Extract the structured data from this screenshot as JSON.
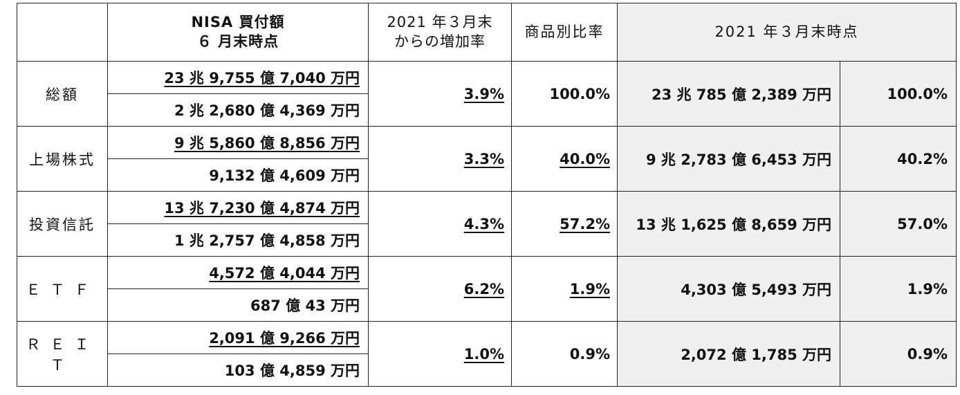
{
  "headers": {
    "nisa_line1": "NISA 買付額",
    "nisa_line2": "６ 月末時点",
    "increase_line1": "2021 年３月末",
    "increase_line2": "からの増加率",
    "share": "商品別比率",
    "march": "2021 年３月末時点"
  },
  "rows": [
    {
      "label": "総額",
      "amount_top": "23 兆 9,755 億 7,040 万円",
      "amount_bottom": "2 兆 2,680 億 4,369 万円",
      "increase": "3.9%",
      "share": "100.0%",
      "march_amount": "23 兆 785 億 2,389 万円",
      "march_share": "100.0%"
    },
    {
      "label": "上場株式",
      "amount_top": "9 兆 5,860 億 8,856 万円",
      "amount_bottom": "9,132 億 4,609 万円",
      "increase": "3.3%",
      "share": "40.0%",
      "march_amount": "9 兆 2,783 億 6,453 万円",
      "march_share": "40.2%"
    },
    {
      "label": "投資信託",
      "amount_top": "13 兆 7,230 億 4,874 万円",
      "amount_bottom": "1 兆 2,757 億 4,858 万円",
      "increase": "4.3%",
      "share": "57.2%",
      "march_amount": "13 兆 1,625 億 8,659 万円",
      "march_share": "57.0%"
    },
    {
      "label": "ＥＴＦ",
      "amount_top": "4,572 億 4,044 万円",
      "amount_bottom": "687 億 43 万円",
      "increase": "6.2%",
      "share": "1.9%",
      "march_amount": "4,303 億 5,493 万円",
      "march_share": "1.9%"
    },
    {
      "label": "ＲＥＩＴ",
      "amount_top": "2,091 億 9,266 万円",
      "amount_bottom": "103 億 4,859 万円",
      "increase": "1.0%",
      "share": "0.9%",
      "march_amount": "2,072 億 1,785 万円",
      "march_share": "0.9%"
    }
  ]
}
